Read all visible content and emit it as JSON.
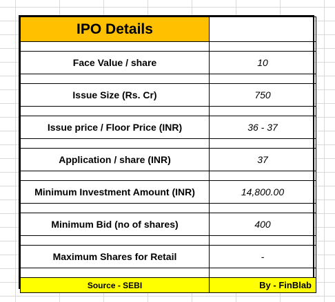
{
  "header": {
    "title": "IPO Details",
    "title_value": ""
  },
  "rows": [
    {
      "label": "Face Value / share",
      "value": "10"
    },
    {
      "label": "Issue Size (Rs. Cr)",
      "value": "750"
    },
    {
      "label": "Issue price / Floor Price (INR)",
      "value": "36 - 37"
    },
    {
      "label": "Application / share (INR)",
      "value": "37"
    },
    {
      "label": "Minimum Investment Amount (INR)",
      "value": "14,800.00"
    },
    {
      "label": "Minimum Bid (no of shares)",
      "value": "400"
    },
    {
      "label": "Maximum Shares for Retail",
      "value": "-"
    }
  ],
  "footer": {
    "source": "Source - SEBI",
    "by": "By - FinBlab"
  },
  "colors": {
    "title_bg": "#ffc000",
    "footer_bg": "#ffff00"
  }
}
